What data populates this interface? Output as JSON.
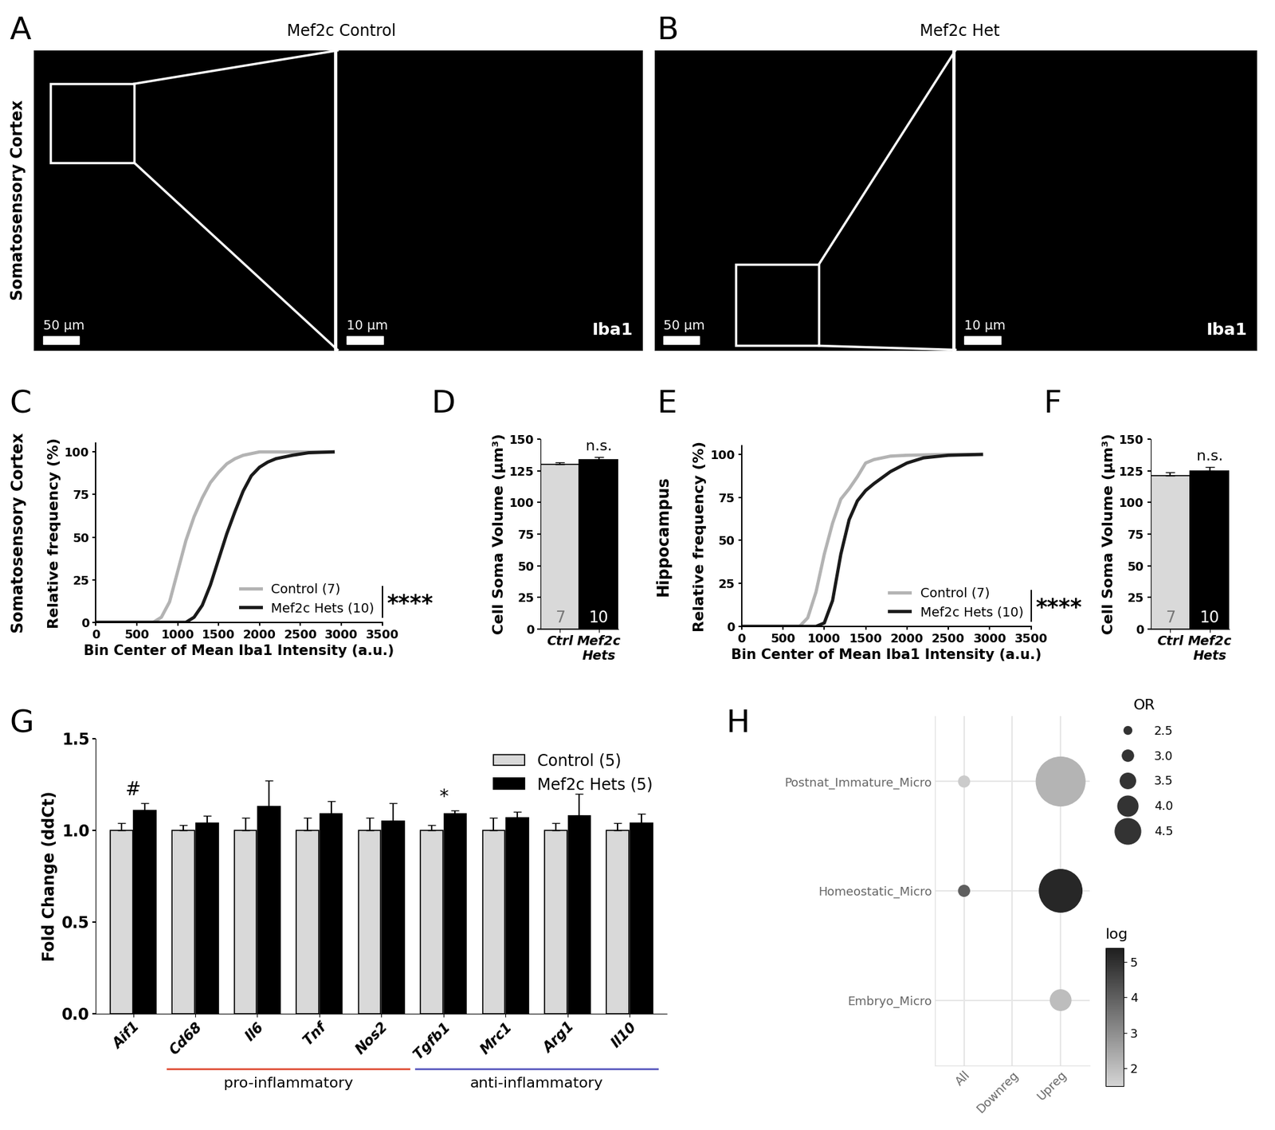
{
  "images": [
    {
      "panel": "A",
      "title": "Mef2c Control",
      "region": "Somatosensory Cortex",
      "scale_bars": [
        "50 µm",
        "10 µm"
      ],
      "stain": "Iba1"
    },
    {
      "panel": "B",
      "title": "Mef2c Het",
      "scale_bars": [
        "50 µm",
        "10 µm"
      ],
      "stain": "Iba1"
    }
  ],
  "chart_data": [
    {
      "panel": "C",
      "type": "line",
      "region": "Somatosensory Cortex",
      "y_label": "Relative frequency (%)",
      "x_label": "Bin Center of Mean Iba1 Intensity (a.u.)",
      "series": [
        {
          "name": "Control (7)",
          "color": "#b3b3b3",
          "x": [
            0,
            700,
            800,
            900,
            1000,
            1100,
            1200,
            1300,
            1400,
            1500,
            1600,
            1700,
            1800,
            2000,
            2500,
            2900
          ],
          "values": [
            0,
            0,
            3,
            12,
            30,
            48,
            62,
            73,
            82,
            88,
            93,
            96,
            98,
            100,
            100,
            100
          ]
        },
        {
          "name": "Mef2c Hets (10)",
          "color": "#1a1a1a",
          "x": [
            0,
            1100,
            1200,
            1300,
            1400,
            1500,
            1600,
            1700,
            1800,
            1900,
            2000,
            2100,
            2200,
            2400,
            2600,
            2900
          ],
          "values": [
            0,
            0,
            3,
            10,
            22,
            37,
            52,
            65,
            77,
            86,
            91,
            94,
            96,
            98,
            99.5,
            100
          ]
        }
      ],
      "xlim": [
        0,
        3500
      ],
      "xticks": [
        0,
        500,
        1000,
        1500,
        2000,
        2500,
        3000,
        3500
      ],
      "ylim": [
        0,
        105
      ],
      "yticks": [
        0,
        25,
        50,
        75,
        100
      ],
      "legend": "lower right",
      "significance": "****"
    },
    {
      "panel": "D",
      "type": "bar",
      "categories": [
        "Ctrl",
        "Mef2c\nHets"
      ],
      "values": [
        130,
        134
      ],
      "errors": [
        2,
        2
      ],
      "colors": [
        "#d9d9d9",
        "#000000"
      ],
      "n_labels": [
        "7",
        "10"
      ],
      "y_label": "Cell Soma Volume (µm³)",
      "ylim": [
        0,
        150
      ],
      "yticks": [
        0,
        25,
        50,
        75,
        100,
        125,
        150
      ],
      "significance": "n.s."
    },
    {
      "panel": "E",
      "type": "line",
      "region": "Hippocampus",
      "y_label": "Relative frequency (%)",
      "x_label": "Bin Center of Mean Iba1 Intensity (a.u.)",
      "series": [
        {
          "name": "Control (7)",
          "color": "#b3b3b3",
          "x": [
            0,
            700,
            800,
            900,
            1000,
            1100,
            1200,
            1300,
            1400,
            1500,
            1600,
            1800,
            2000,
            2500,
            2900
          ],
          "values": [
            0,
            0,
            5,
            20,
            42,
            60,
            74,
            80,
            87,
            95,
            97,
            99,
            99.5,
            100,
            100
          ]
        },
        {
          "name": "Mef2c Hets (10)",
          "color": "#1a1a1a",
          "x": [
            0,
            900,
            1000,
            1100,
            1200,
            1300,
            1400,
            1500,
            1600,
            1800,
            2000,
            2200,
            2500,
            2900
          ],
          "values": [
            0,
            0,
            2,
            15,
            42,
            62,
            73,
            79,
            83,
            90,
            95,
            98,
            99.5,
            100
          ]
        }
      ],
      "xlim": [
        0,
        3500
      ],
      "xticks": [
        0,
        500,
        1000,
        1500,
        2000,
        2500,
        3000,
        3500
      ],
      "ylim": [
        0,
        105
      ],
      "yticks": [
        0,
        25,
        50,
        75,
        100
      ],
      "legend": "lower right",
      "significance": "****"
    },
    {
      "panel": "F",
      "type": "bar",
      "categories": [
        "Ctrl",
        "Mef2c\nHets"
      ],
      "values": [
        121,
        125
      ],
      "errors": [
        3,
        3
      ],
      "colors": [
        "#d9d9d9",
        "#000000"
      ],
      "n_labels": [
        "7",
        "10"
      ],
      "y_label": "Cell Soma Volume (µm³)",
      "ylim": [
        0,
        150
      ],
      "yticks": [
        0,
        25,
        50,
        75,
        100,
        125,
        150
      ],
      "significance": "n.s."
    },
    {
      "panel": "G",
      "type": "bar",
      "y_label": "Fold Change (ddCt)",
      "categories": [
        "Aif1",
        "Cd68",
        "Il6",
        "Tnf",
        "Nos2",
        "Tgfb1",
        "Mrc1",
        "Arg1",
        "Il10"
      ],
      "series": [
        {
          "name": "Control (5)",
          "color": "#d9d9d9",
          "values": [
            1.0,
            1.0,
            1.0,
            1.0,
            1.0,
            1.0,
            1.0,
            1.0,
            1.0
          ],
          "errors": [
            0.04,
            0.03,
            0.07,
            0.07,
            0.07,
            0.03,
            0.07,
            0.04,
            0.04
          ]
        },
        {
          "name": "Mef2c Hets (5)",
          "color": "#000000",
          "values": [
            1.11,
            1.04,
            1.13,
            1.09,
            1.05,
            1.09,
            1.07,
            1.08,
            1.04
          ],
          "errors": [
            0.04,
            0.04,
            0.14,
            0.07,
            0.1,
            0.02,
            0.03,
            0.12,
            0.05
          ]
        }
      ],
      "annotations": [
        {
          "category": "Aif1",
          "text": "#"
        },
        {
          "category": "Tgfb1",
          "text": "*"
        }
      ],
      "groups": [
        {
          "label": "pro-inflammatory",
          "categories": [
            "Cd68",
            "Il6",
            "Tnf",
            "Nos2"
          ],
          "color": "#e0523a"
        },
        {
          "label": "anti-inflammatory",
          "categories": [
            "Tgfb1",
            "Mrc1",
            "Arg1",
            "Il10"
          ],
          "color": "#5b5bbf"
        }
      ],
      "ylim": [
        0,
        1.5
      ],
      "yticks": [
        {
          "value": 0,
          "label": "0.0"
        },
        {
          "value": 0.5,
          "label": "0.5"
        },
        {
          "value": 1.0,
          "label": "1.0"
        },
        {
          "value": 1.5,
          "label": "1.5"
        }
      ],
      "legend": "upper right"
    },
    {
      "panel": "H",
      "type": "scatter",
      "x_categories": [
        "All",
        "Downreg",
        "Upreg"
      ],
      "y_categories": [
        "Embryo_Micro",
        "Homeostatic_Micro",
        "Postnat_Immature_Micro"
      ],
      "points": [
        {
          "x": "All",
          "y": "Postnat_Immature_Micro",
          "OR": 2.2,
          "log": 1.7
        },
        {
          "x": "Upreg",
          "y": "Postnat_Immature_Micro",
          "OR": 4.6,
          "log": 2.2
        },
        {
          "x": "All",
          "y": "Homeostatic_Micro",
          "OR": 2.2,
          "log": 4.0
        },
        {
          "x": "Upreg",
          "y": "Homeostatic_Micro",
          "OR": 4.3,
          "log": 5.2
        },
        {
          "x": "Upreg",
          "y": "Embryo_Micro",
          "OR": 3.0,
          "log": 2.0
        }
      ],
      "size_legend": {
        "title": "OR",
        "values": [
          2.5,
          3.0,
          3.5,
          4.0,
          4.5
        ]
      },
      "colorbar": {
        "title": "log",
        "range": [
          1.5,
          5.4
        ],
        "ticks": [
          2,
          3,
          4,
          5
        ]
      },
      "grid": true
    }
  ]
}
